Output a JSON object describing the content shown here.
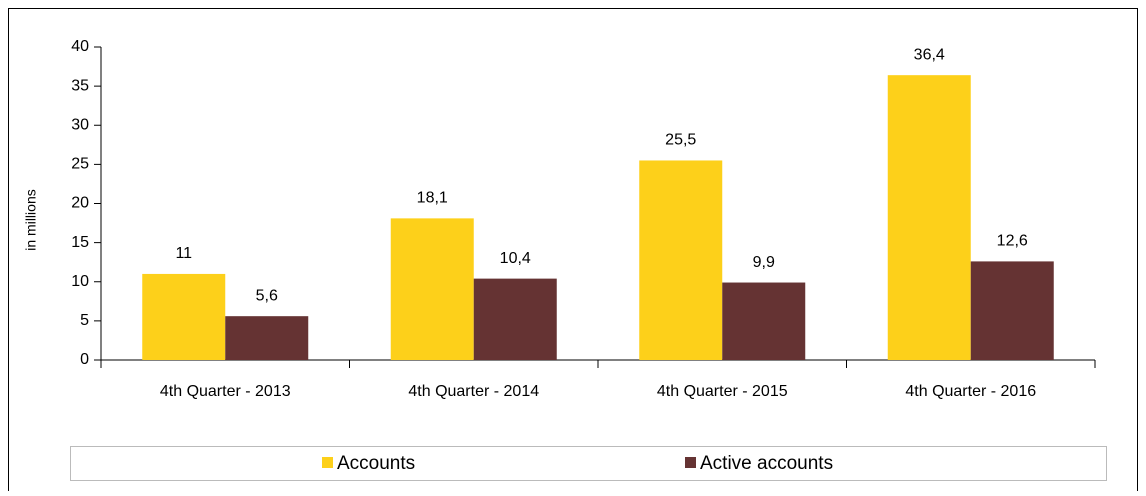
{
  "chart_data": {
    "type": "bar",
    "y_label": "in millions",
    "categories": [
      "4th Quarter - 2013",
      "4th Quarter - 2014",
      "4th Quarter - 2015",
      "4th Quarter - 2016"
    ],
    "series": [
      {
        "name": "Accounts",
        "color": "#fdd01a",
        "values": [
          11,
          18.1,
          25.5,
          36.4
        ],
        "value_labels": [
          "11",
          "18,1",
          "25,5",
          "36,4"
        ]
      },
      {
        "name": "Active accounts",
        "color": "#653333",
        "values": [
          5.6,
          10.4,
          9.9,
          12.6
        ],
        "value_labels": [
          "5,6",
          "10,4",
          "9,9",
          "12,6"
        ]
      }
    ],
    "ylim": [
      0,
      40
    ],
    "yticks": [
      0,
      5,
      10,
      15,
      20,
      25,
      30,
      35,
      40
    ],
    "grid": false,
    "legend": "bottom"
  }
}
